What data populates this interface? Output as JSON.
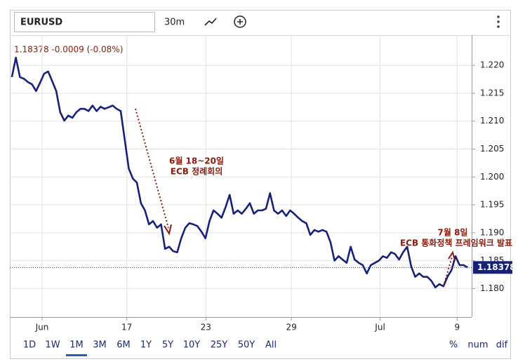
{
  "toolbar": {
    "symbol": "EURUSD",
    "interval": "30m",
    "quote": "1.18378 -0.0009 (-0.08%)"
  },
  "range_buttons": [
    "1D",
    "1W",
    "1M",
    "3M",
    "6M",
    "1Y",
    "5Y",
    "10Y",
    "25Y",
    "50Y",
    "All"
  ],
  "display_modes": [
    "%",
    "num",
    "dif"
  ],
  "chart_data": {
    "type": "line",
    "series": [
      {
        "name": "EURUSD",
        "color": "#16217a",
        "values": [
          1.2179,
          1.2214,
          1.2179,
          1.2176,
          1.217,
          1.2166,
          1.2154,
          1.2169,
          1.2185,
          1.2189,
          1.2172,
          1.2154,
          1.2116,
          1.2101,
          1.211,
          1.2106,
          1.2116,
          1.2122,
          1.2122,
          1.2118,
          1.2128,
          1.2118,
          1.2126,
          1.2122,
          1.2125,
          1.2128,
          1.2122,
          1.2118,
          1.2066,
          1.2015,
          1.1997,
          1.199,
          1.1953,
          1.194,
          1.1915,
          1.1921,
          1.1909,
          1.1915,
          1.1871,
          1.1875,
          1.1867,
          1.1865,
          1.189,
          1.1909,
          1.1917,
          1.1915,
          1.1912,
          1.1902,
          1.189,
          1.1921,
          1.194,
          1.1934,
          1.1927,
          1.1946,
          1.1968,
          1.1934,
          1.194,
          1.1934,
          1.1943,
          1.1953,
          1.1934,
          1.194,
          1.194,
          1.1943,
          1.1971,
          1.194,
          1.1934,
          1.194,
          1.193,
          1.194,
          1.1934,
          1.1927,
          1.1921,
          1.1917,
          1.1896,
          1.1905,
          1.1902,
          1.1905,
          1.1902,
          1.1883,
          1.185,
          1.1858,
          1.1852,
          1.1846,
          1.1875,
          1.1852,
          1.1846,
          1.1842,
          1.1827,
          1.1842,
          1.1846,
          1.185,
          1.1858,
          1.1855,
          1.1865,
          1.1862,
          1.1852,
          1.1865,
          1.1875,
          1.184,
          1.1821,
          1.1827,
          1.1821,
          1.1821,
          1.1814,
          1.1802,
          1.1808,
          1.1804,
          1.1821,
          1.1833,
          1.1858,
          1.1842,
          1.1842,
          1.18378
        ]
      }
    ],
    "last_value": 1.18378,
    "xlim": [
      -0.5,
      114
    ],
    "xticks": [
      {
        "value": 7.5,
        "label": "Jun"
      },
      {
        "value": 28.5,
        "label": "17"
      },
      {
        "value": 48.1,
        "label": "23"
      },
      {
        "value": 69.3,
        "label": "29"
      },
      {
        "value": 91.3,
        "label": "Jul"
      },
      {
        "value": 110.4,
        "label": "9"
      }
    ],
    "ylim": [
      1.1749,
      1.2248
    ],
    "yticks": [
      {
        "value": 1.22,
        "label": "1.220"
      },
      1.215,
      {
        "value": 1.21,
        "label": "1.210"
      },
      1.205,
      {
        "value": 1.2,
        "label": "1.200"
      },
      1.195,
      {
        "value": 1.19,
        "label": "1.190"
      },
      1.185,
      {
        "value": 1.18,
        "label": "1.180"
      }
    ],
    "grid": true,
    "annotations": [
      {
        "text": [
          "6월 18~20일",
          "ECB 정례회의"
        ]
      },
      {
        "text": [
          "7월 8일",
          "ECB 통화정책 프레임워크 발표"
        ]
      }
    ]
  }
}
